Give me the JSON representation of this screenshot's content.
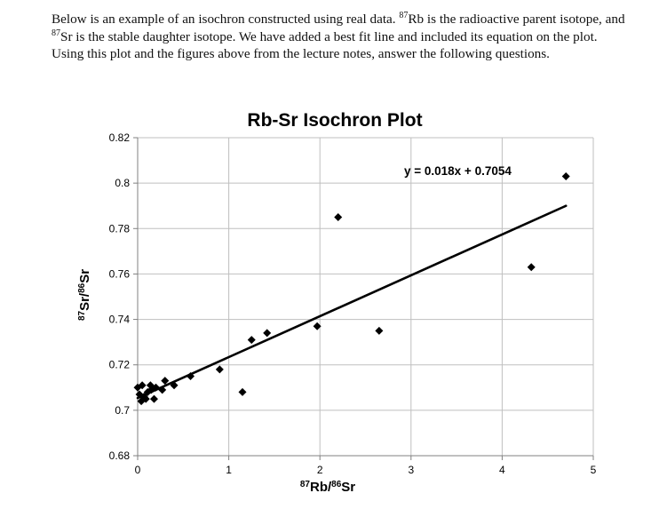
{
  "intro": {
    "part1": "Below is an example of an isochron constructed using real data. ",
    "sup1": "87",
    "part2": "Rb is the radioactive parent isotope, and ",
    "sup2": "87",
    "part3": "Sr is the stable daughter isotope. We have added a best fit line and included its equation on the plot. Using this plot and the figures above from the lecture notes, answer the following questions."
  },
  "chart_data": {
    "type": "scatter",
    "title": "Rb-Sr Isochron Plot",
    "xlabel": {
      "sup_a": "87",
      "base_a": "Rb/",
      "sup_b": "86",
      "base_b": "Sr"
    },
    "ylabel": {
      "sup_a": "87",
      "base_a": "Sr/",
      "sup_b": "86",
      "base_b": "Sr"
    },
    "xlim": [
      0,
      5
    ],
    "ylim": [
      0.68,
      0.82
    ],
    "x_ticks": [
      0,
      1,
      2,
      3,
      4,
      5
    ],
    "x_tick_labels": [
      "0",
      "1",
      "2",
      "3",
      "4",
      "5"
    ],
    "y_ticks": [
      0.68,
      0.7,
      0.72,
      0.74,
      0.76,
      0.78,
      0.8,
      0.82
    ],
    "y_tick_labels": [
      "0.68",
      "0.7",
      "0.72",
      "0.74",
      "0.76",
      "0.78",
      "0.8",
      "0.82"
    ],
    "grid": true,
    "legend": "none",
    "marker": "diamond",
    "series": [
      {
        "points": [
          {
            "x": 0.0,
            "y": 0.71
          },
          {
            "x": 0.02,
            "y": 0.707
          },
          {
            "x": 0.04,
            "y": 0.704
          },
          {
            "x": 0.05,
            "y": 0.711
          },
          {
            "x": 0.07,
            "y": 0.706
          },
          {
            "x": 0.09,
            "y": 0.705
          },
          {
            "x": 0.11,
            "y": 0.708
          },
          {
            "x": 0.14,
            "y": 0.711
          },
          {
            "x": 0.15,
            "y": 0.709
          },
          {
            "x": 0.18,
            "y": 0.705
          },
          {
            "x": 0.2,
            "y": 0.71
          },
          {
            "x": 0.27,
            "y": 0.709
          },
          {
            "x": 0.3,
            "y": 0.713
          },
          {
            "x": 0.4,
            "y": 0.711
          },
          {
            "x": 0.58,
            "y": 0.715
          },
          {
            "x": 0.9,
            "y": 0.718
          },
          {
            "x": 1.15,
            "y": 0.708
          },
          {
            "x": 1.25,
            "y": 0.731
          },
          {
            "x": 1.42,
            "y": 0.734
          },
          {
            "x": 1.97,
            "y": 0.737
          },
          {
            "x": 2.2,
            "y": 0.785
          },
          {
            "x": 2.65,
            "y": 0.735
          },
          {
            "x": 4.32,
            "y": 0.763
          },
          {
            "x": 4.7,
            "y": 0.803
          }
        ]
      }
    ],
    "fit_line": {
      "slope": 0.018,
      "intercept": 0.7054,
      "x_range": [
        0,
        4.7
      ],
      "equation": "y = 0.018x + 0.7054"
    },
    "colors": {
      "marker": "#000000",
      "line": "#000000",
      "grid": "#bfbfbf",
      "axis": "#808080"
    }
  }
}
